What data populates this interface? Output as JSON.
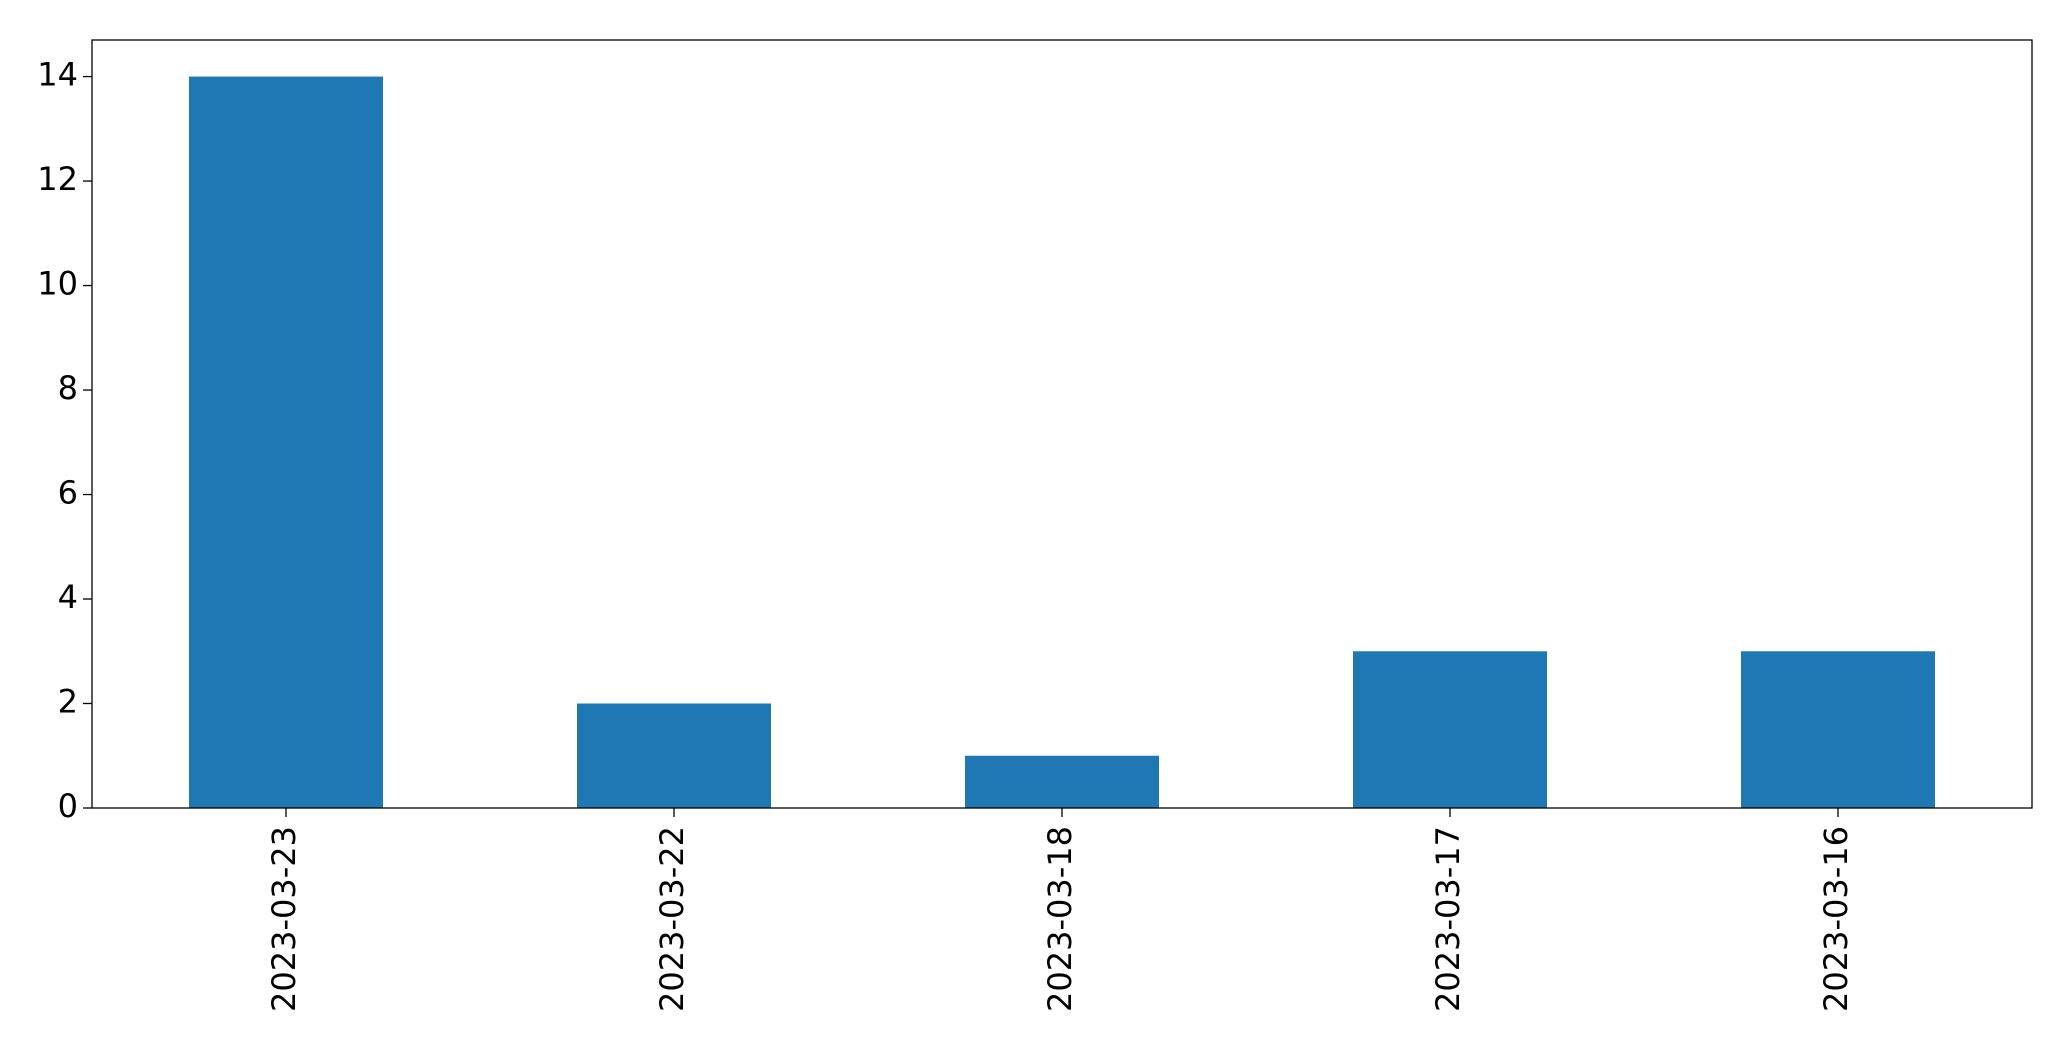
{
  "chart_data": {
    "type": "bar",
    "categories": [
      "2023-03-23",
      "2023-03-22",
      "2023-03-18",
      "2023-03-17",
      "2023-03-16"
    ],
    "values": [
      14,
      2,
      1,
      3,
      3
    ],
    "color": "#1f77b4",
    "ylim": [
      0,
      14.7
    ],
    "yticks": [
      0,
      2,
      4,
      6,
      8,
      10,
      12,
      14
    ],
    "grid": false
  }
}
